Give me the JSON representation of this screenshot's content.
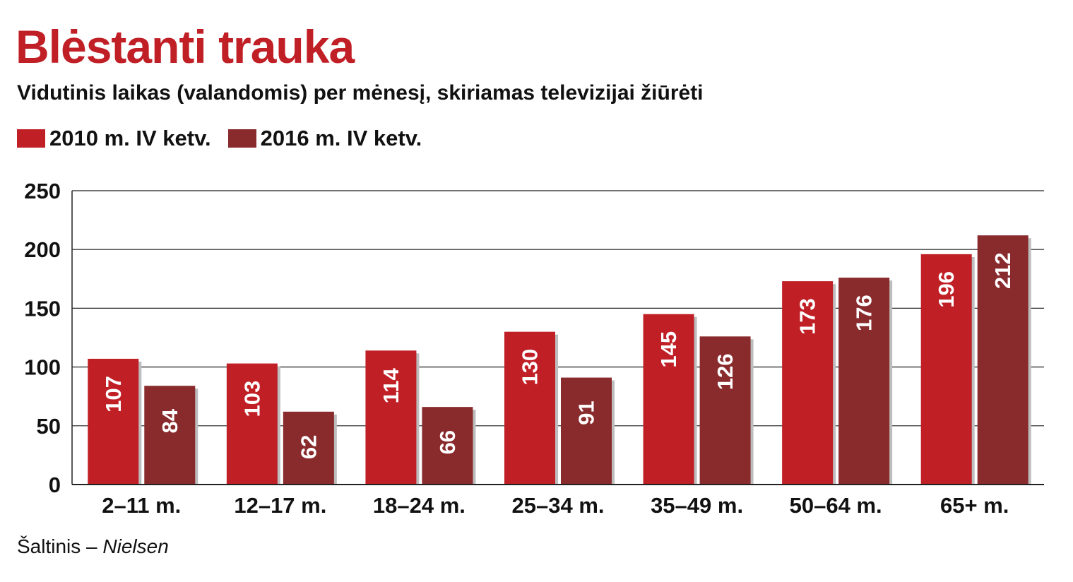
{
  "title": "Blėstanti trauka",
  "subtitle": "Vidutinis laikas (valandomis) per mėnesį, skiriamas televizijai žiūrėti",
  "source": {
    "prefix": "Šaltinis –",
    "name": "Nielsen"
  },
  "colors": {
    "title": "#c01f26",
    "series_2010": "#c01f26",
    "series_2016": "#892a2d",
    "gridline": "#222222",
    "bar_label": "#ffffff"
  },
  "chart_data": {
    "type": "bar",
    "categories": [
      "2–11 m.",
      "12–17 m.",
      "18–24 m.",
      "25–34 m.",
      "35–49 m.",
      "50–64 m.",
      "65+ m."
    ],
    "series": [
      {
        "name": "2010 m. IV ketv.",
        "values": [
          107,
          103,
          114,
          130,
          145,
          173,
          196
        ]
      },
      {
        "name": "2016 m. IV ketv.",
        "values": [
          84,
          62,
          66,
          91,
          126,
          176,
          212
        ]
      }
    ],
    "ylim": [
      0,
      250
    ],
    "yticks": [
      0,
      50,
      100,
      150,
      200,
      250
    ],
    "grid": true,
    "legend": "top-left",
    "data_labels": "inside-bar-rotated"
  }
}
